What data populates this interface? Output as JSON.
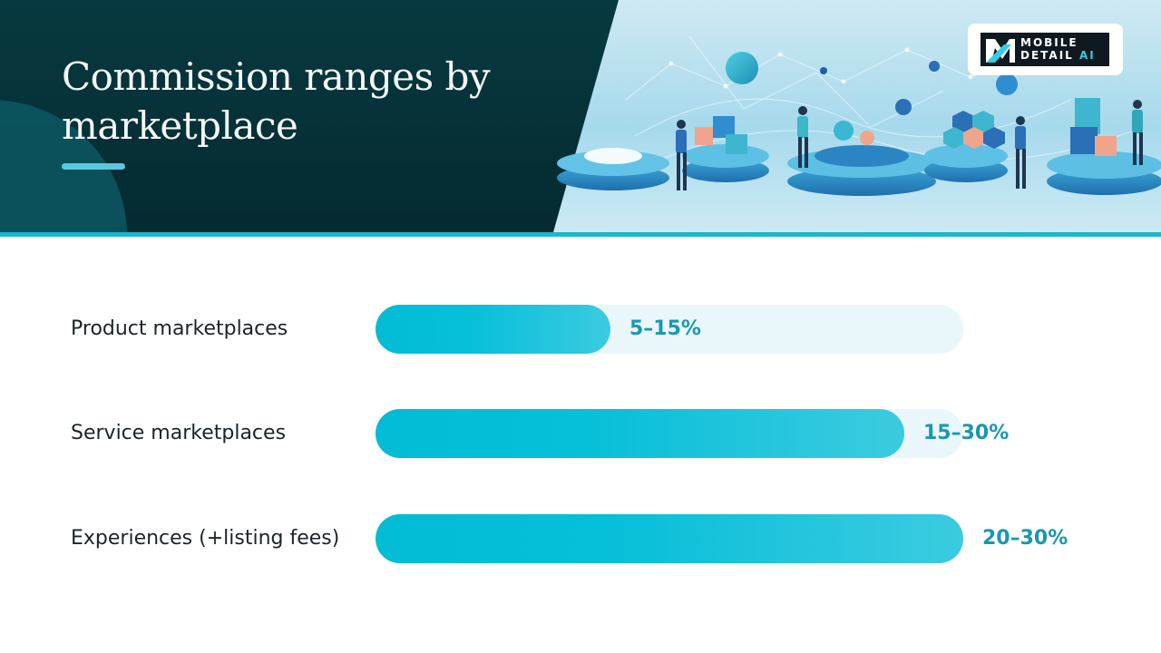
{
  "slide": {
    "title": "Commission ranges by marketplace",
    "logo": {
      "line1": "MOBILE",
      "line2": "DETAIL",
      "line2_accent": "AI"
    }
  },
  "chart_data": {
    "type": "bar",
    "orientation": "horizontal",
    "title": "Commission ranges by marketplace",
    "categories": [
      "Product marketplaces",
      "Service marketplaces",
      "Experiences (+listing fees)"
    ],
    "value_labels": [
      "5–15%",
      "15–30%",
      "20–30%"
    ],
    "ranges": [
      [
        5,
        15
      ],
      [
        15,
        30
      ],
      [
        20,
        30
      ]
    ],
    "values": [
      12,
      27,
      30
    ],
    "xlim": [
      0,
      30
    ],
    "xlabel": "",
    "ylabel": "",
    "grid": false,
    "legend": "none",
    "colors": {
      "bar": "#06bfd8",
      "track": "#e9f7fb",
      "value_text": "#1a97b1",
      "accent": "#1bb6cf"
    }
  }
}
